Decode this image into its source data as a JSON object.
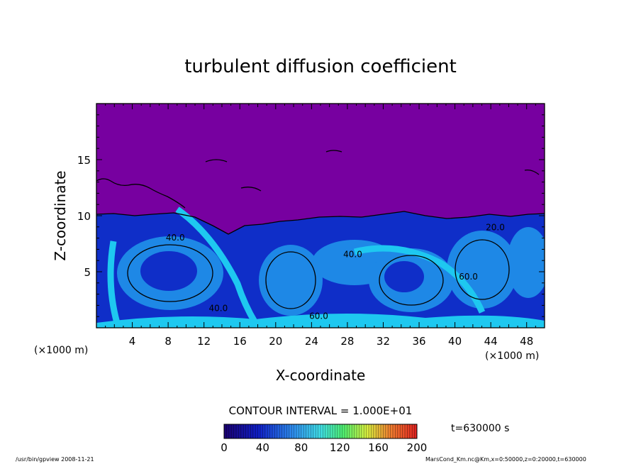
{
  "chart_data": {
    "type": "heatmap",
    "title": "turbulent diffusion coefficient",
    "xlabel": "X-coordinate",
    "ylabel": "Z-coordinate",
    "x_unit": "(×1000 m)",
    "y_unit": "(×1000 m)",
    "xlim": [
      0,
      50
    ],
    "ylim": [
      0,
      20
    ],
    "xticks": [
      4,
      8,
      12,
      16,
      20,
      24,
      28,
      32,
      36,
      40,
      44,
      48
    ],
    "yticks": [
      5,
      10,
      15
    ],
    "contour_interval_label": "CONTOUR INTERVAL = 1.000E+01",
    "time_label": "t=630000 s",
    "colorbar": {
      "min": 0,
      "max": 200,
      "ticks": [
        0,
        40,
        80,
        120,
        160,
        200
      ]
    },
    "contour_labels": [
      {
        "text": "40.0",
        "x": 8.8,
        "z": 7.8
      },
      {
        "text": "40.0",
        "x": 13.6,
        "z": 1.5
      },
      {
        "text": "60.0",
        "x": 24.8,
        "z": 0.8
      },
      {
        "text": "40.0",
        "x": 28.6,
        "z": 6.3
      },
      {
        "text": "60.0",
        "x": 41.5,
        "z": 4.3
      },
      {
        "text": "20.0",
        "x": 44.5,
        "z": 8.7
      }
    ],
    "colors": {
      "upper_region": "#7700a0",
      "low": "#0f2ec8",
      "mid": "#1e88e6",
      "high": "#1ec8f0",
      "peak": "#5cf090"
    }
  },
  "footer": {
    "left": "/usr/bin/gpview  2008-11-21",
    "right": "MarsCond_Km.nc@Km,x=0:50000,z=0:20000,t=630000"
  }
}
